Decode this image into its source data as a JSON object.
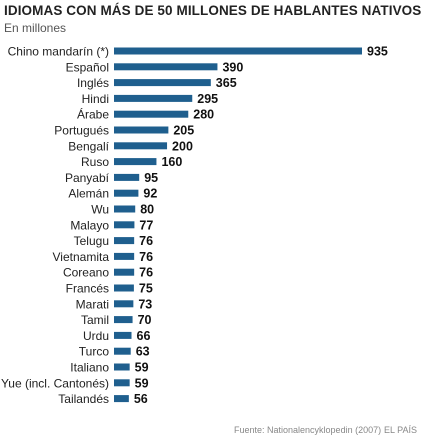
{
  "chart_data": {
    "type": "bar",
    "orientation": "horizontal",
    "title": "IDIOMAS CON MÁS DE 50 MILLONES DE HABLANTES NATIVOS",
    "subtitle": "En millones",
    "categories": [
      "Chino mandarín (*)",
      "Español",
      "Inglés",
      "Hindi",
      "Árabe",
      "Portugués",
      "Bengalí",
      "Ruso",
      "Panyabí",
      "Alemán",
      "Wu",
      "Malayo",
      "Telugu",
      "Vietnamita",
      "Coreano",
      "Francés",
      "Marati",
      "Tamil",
      "Urdu",
      "Turco",
      "Italiano",
      "Yue (incl. Cantonés)",
      "Tailandés"
    ],
    "values": [
      935,
      390,
      365,
      295,
      280,
      205,
      200,
      160,
      95,
      92,
      80,
      77,
      76,
      76,
      76,
      75,
      73,
      70,
      66,
      63,
      59,
      59,
      56
    ],
    "bar_color": "#1f5f8e",
    "xlim": [
      0,
      935
    ],
    "grid": false
  },
  "source": "Fuente: Nationalencyklopedin (2007)",
  "publisher": "EL PAÍS"
}
